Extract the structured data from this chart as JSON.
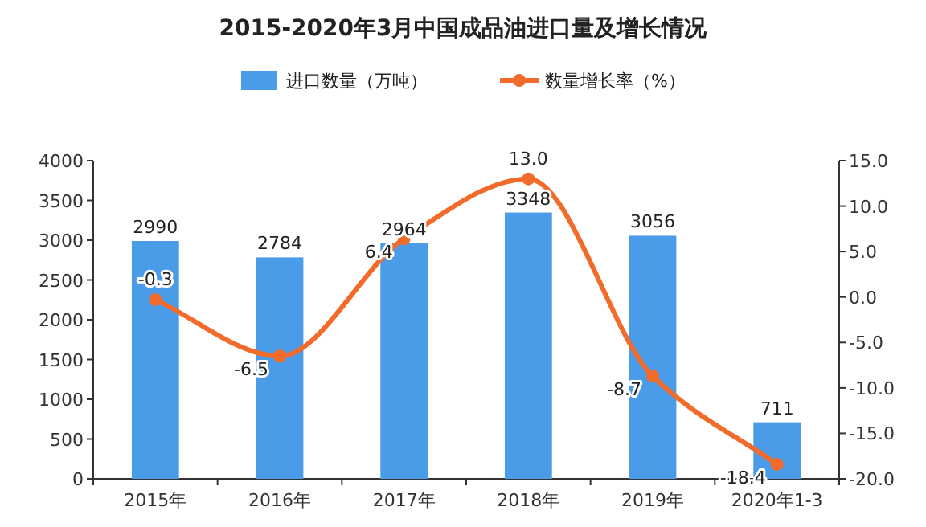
{
  "chart_data": {
    "type": "bar",
    "title": "2015-2020年3月中国成品油进口量及增长情况",
    "categories": [
      "2015年",
      "2016年",
      "2017年",
      "2018年",
      "2019年",
      "2020年1-3"
    ],
    "series": [
      {
        "name": "进口数量（万吨）",
        "color": "#4a9be8",
        "values": [
          2990,
          2784,
          2964,
          3348,
          3056,
          711
        ],
        "value_labels": [
          "2990",
          "2784",
          "2964",
          "3348",
          "3056",
          "711"
        ]
      },
      {
        "name": "数量增长率（%）",
        "type": "line",
        "axis": "y2",
        "color": "#f26b2a",
        "marker": "circle",
        "values": [
          -0.3,
          -6.5,
          6.4,
          13.0,
          -8.7,
          -18.4
        ],
        "value_labels": [
          "-0.3",
          "-6.5",
          "6.4",
          "13.0",
          "-8.7",
          "-18.4"
        ]
      }
    ],
    "ylim": [
      0,
      4000
    ],
    "yticks": [
      0,
      500,
      1000,
      1500,
      2000,
      2500,
      3000,
      3500,
      4000
    ],
    "y2lim": [
      -20,
      15
    ],
    "y2ticks": [
      {
        "value": -20,
        "label": "-20.0"
      },
      {
        "value": -15,
        "label": "-15.0"
      },
      {
        "value": -10,
        "label": "-10.0"
      },
      {
        "value": -5,
        "label": "-5.0"
      },
      {
        "value": 0,
        "label": "0.0"
      },
      {
        "value": 5,
        "label": "5.0"
      },
      {
        "value": 10,
        "label": "10.0"
      },
      {
        "value": 15,
        "label": "15.0"
      }
    ],
    "legend": "top",
    "grid": false
  }
}
